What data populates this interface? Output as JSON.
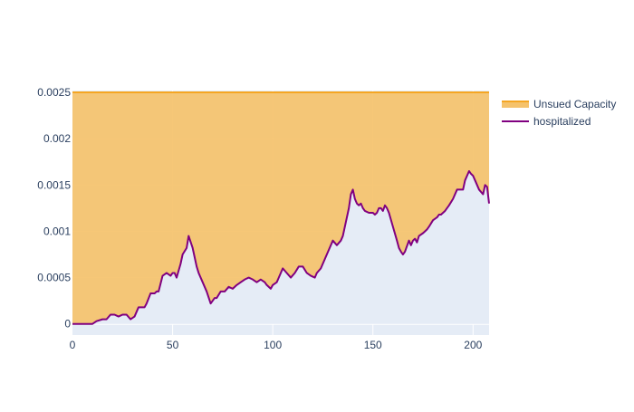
{
  "chart_data": {
    "type": "area",
    "title": "",
    "xlabel": "",
    "ylabel": "",
    "xlim": [
      0,
      208
    ],
    "ylim": [
      -0.00012,
      0.00252
    ],
    "x_ticks": [
      0,
      50,
      100,
      150,
      200
    ],
    "x_tick_labels": [
      "0",
      "50",
      "100",
      "150",
      "200"
    ],
    "y_ticks": [
      0,
      0.0005,
      0.001,
      0.0015,
      0.002,
      0.0025
    ],
    "y_tick_labels": [
      "0",
      "0.0005",
      "0.001",
      "0.0015",
      "0.002",
      "0.0025"
    ],
    "grid": true,
    "legend_position": "top-right",
    "series": [
      {
        "name": "Unsued Capacity",
        "color": "#f5a623",
        "fill_color": "#f5c26b",
        "fill": "tonexty",
        "x": [
          0,
          208
        ],
        "y": [
          0.0025,
          0.0025
        ]
      },
      {
        "name": "hospitalized",
        "color": "#800080",
        "fill": "tozeroy",
        "x": [
          0,
          8,
          10,
          12,
          15,
          17,
          19,
          21,
          23,
          25,
          27,
          29,
          31,
          33,
          35,
          36,
          37,
          39,
          41,
          42,
          43,
          45,
          47,
          49,
          50,
          51,
          52,
          54,
          55,
          57,
          58,
          60,
          62,
          63,
          65,
          67,
          69,
          71,
          72,
          74,
          76,
          78,
          80,
          82,
          84,
          86,
          88,
          90,
          92,
          94,
          96,
          97,
          99,
          100,
          102,
          103,
          104,
          105,
          107,
          109,
          111,
          113,
          115,
          117,
          119,
          121,
          122,
          124,
          126,
          128,
          130,
          132,
          134,
          135,
          136,
          138,
          139,
          140,
          141,
          142,
          143,
          144,
          145,
          146,
          148,
          150,
          151,
          152,
          153,
          154,
          155,
          156,
          157,
          158,
          160,
          162,
          163,
          164,
          165,
          166,
          168,
          169,
          170,
          171,
          172,
          173,
          175,
          176,
          177,
          178,
          180,
          182,
          183,
          184,
          186,
          188,
          190,
          192,
          193,
          194,
          195,
          196,
          197,
          198,
          199,
          200,
          201,
          203,
          205,
          206,
          207,
          208
        ],
        "y": [
          0,
          0,
          0,
          3e-05,
          5e-05,
          5e-05,
          0.0001,
          0.0001,
          8e-05,
          0.0001,
          0.0001,
          5e-05,
          8e-05,
          0.00018,
          0.00018,
          0.00018,
          0.00022,
          0.00033,
          0.00033,
          0.00035,
          0.00035,
          0.00052,
          0.00055,
          0.00052,
          0.00055,
          0.00055,
          0.0005,
          0.00065,
          0.00075,
          0.00082,
          0.00095,
          0.00082,
          0.00062,
          0.00055,
          0.00045,
          0.00035,
          0.00022,
          0.00028,
          0.00028,
          0.00035,
          0.00035,
          0.0004,
          0.00038,
          0.00042,
          0.00045,
          0.00048,
          0.0005,
          0.00048,
          0.00045,
          0.00048,
          0.00045,
          0.00042,
          0.00038,
          0.00042,
          0.00045,
          0.0005,
          0.00055,
          0.0006,
          0.00055,
          0.0005,
          0.00055,
          0.00062,
          0.00062,
          0.00055,
          0.00052,
          0.0005,
          0.00055,
          0.0006,
          0.0007,
          0.0008,
          0.0009,
          0.00085,
          0.0009,
          0.00095,
          0.00105,
          0.00125,
          0.0014,
          0.00145,
          0.00135,
          0.0013,
          0.00128,
          0.0013,
          0.00125,
          0.00122,
          0.0012,
          0.0012,
          0.00118,
          0.0012,
          0.00125,
          0.00125,
          0.00122,
          0.00128,
          0.00125,
          0.0012,
          0.00105,
          0.0009,
          0.00082,
          0.00078,
          0.00075,
          0.00078,
          0.0009,
          0.00085,
          0.0009,
          0.00092,
          0.00088,
          0.00095,
          0.00098,
          0.001,
          0.00102,
          0.00105,
          0.00112,
          0.00115,
          0.00118,
          0.00118,
          0.00122,
          0.00128,
          0.00135,
          0.00145,
          0.00145,
          0.00145,
          0.00145,
          0.00155,
          0.0016,
          0.00165,
          0.00162,
          0.0016,
          0.00155,
          0.00145,
          0.0014,
          0.0015,
          0.00148,
          0.0013
        ]
      }
    ]
  }
}
